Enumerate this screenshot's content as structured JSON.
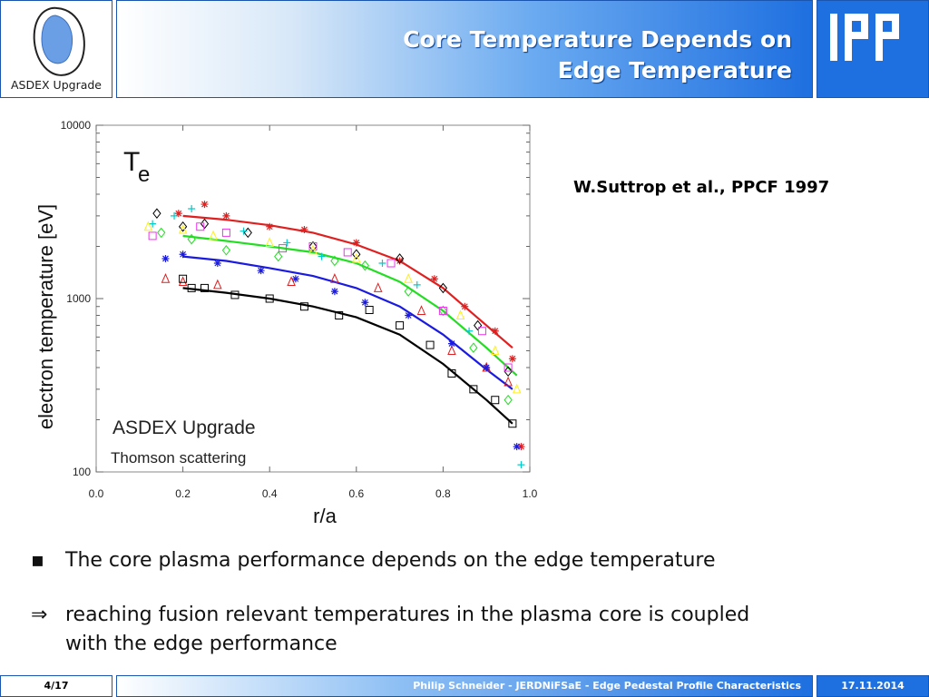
{
  "header": {
    "logo_caption": "ASDEX Upgrade",
    "title_line1": "Core Temperature Depends on",
    "title_line2": "Edge Temperature",
    "ipp_logo_text": "IPP",
    "accent_color": "#1e6fe0"
  },
  "citation": "W.Suttrop et al., PPCF 1997",
  "chart_data": {
    "type": "scatter",
    "title": "T",
    "title_subscript": "e",
    "xlabel": "r/a",
    "ylabel": "electron temperature  [eV]",
    "xscale": "linear",
    "yscale": "log",
    "xlim": [
      0.0,
      1.0
    ],
    "ylim": [
      100,
      10000
    ],
    "xticks": [
      "0.0",
      "0.2",
      "0.4",
      "0.6",
      "0.8",
      "1.0"
    ],
    "yticks": [
      "100",
      "1000",
      "10000"
    ],
    "annotation_1": "ASDEX Upgrade",
    "annotation_2": "Thomson scattering",
    "grid": false,
    "fit_lines": [
      {
        "color": "#e02020",
        "x": [
          0.2,
          0.3,
          0.4,
          0.5,
          0.6,
          0.7,
          0.8,
          0.9,
          0.96
        ],
        "y": [
          3000,
          2850,
          2650,
          2400,
          2050,
          1650,
          1150,
          700,
          520
        ]
      },
      {
        "color": "#22dd22",
        "x": [
          0.2,
          0.3,
          0.4,
          0.5,
          0.6,
          0.7,
          0.8,
          0.9,
          0.97
        ],
        "y": [
          2300,
          2150,
          2000,
          1850,
          1600,
          1250,
          850,
          520,
          360
        ]
      },
      {
        "color": "#1a1ae0",
        "x": [
          0.2,
          0.3,
          0.4,
          0.5,
          0.6,
          0.7,
          0.8,
          0.9,
          0.96
        ],
        "y": [
          1750,
          1650,
          1500,
          1350,
          1150,
          900,
          620,
          390,
          300
        ]
      },
      {
        "color": "#000000",
        "x": [
          0.2,
          0.3,
          0.4,
          0.5,
          0.6,
          0.7,
          0.8,
          0.9,
          0.96
        ],
        "y": [
          1150,
          1080,
          1000,
          900,
          780,
          620,
          420,
          260,
          190
        ]
      }
    ],
    "series": [
      {
        "color": "#e02020",
        "marker": "asterisk",
        "x": [
          0.19,
          0.25,
          0.3,
          0.4,
          0.48,
          0.6,
          0.7,
          0.78,
          0.85,
          0.92,
          0.96,
          0.98
        ],
        "y": [
          3100,
          3500,
          3000,
          2600,
          2500,
          2100,
          1650,
          1300,
          900,
          650,
          450,
          140
        ]
      },
      {
        "color": "#e02020",
        "marker": "triangle",
        "x": [
          0.16,
          0.2,
          0.28,
          0.45,
          0.55,
          0.65,
          0.75,
          0.82,
          0.9,
          0.95
        ],
        "y": [
          1300,
          1250,
          1200,
          1250,
          1300,
          1150,
          850,
          500,
          400,
          330
        ]
      },
      {
        "color": "#22dd22",
        "marker": "diamond",
        "x": [
          0.15,
          0.22,
          0.3,
          0.42,
          0.55,
          0.62,
          0.72,
          0.8,
          0.87,
          0.95
        ],
        "y": [
          2400,
          2200,
          1900,
          1750,
          1650,
          1550,
          1100,
          850,
          520,
          260
        ]
      },
      {
        "color": "#1a1ae0",
        "marker": "asterisk",
        "x": [
          0.16,
          0.2,
          0.28,
          0.38,
          0.46,
          0.55,
          0.62,
          0.72,
          0.82,
          0.9,
          0.97
        ],
        "y": [
          1700,
          1800,
          1600,
          1450,
          1300,
          1100,
          950,
          800,
          550,
          400,
          140
        ]
      },
      {
        "color": "#000000",
        "marker": "square",
        "x": [
          0.2,
          0.22,
          0.25,
          0.32,
          0.4,
          0.48,
          0.56,
          0.63,
          0.7,
          0.77,
          0.82,
          0.87,
          0.92,
          0.96
        ],
        "y": [
          1300,
          1150,
          1150,
          1050,
          1000,
          900,
          800,
          860,
          700,
          540,
          370,
          300,
          260,
          190
        ]
      },
      {
        "color": "#000000",
        "marker": "diamond",
        "x": [
          0.14,
          0.2,
          0.25,
          0.35,
          0.5,
          0.6,
          0.7,
          0.8,
          0.88,
          0.95
        ],
        "y": [
          3100,
          2600,
          2700,
          2400,
          2000,
          1800,
          1700,
          1150,
          700,
          380
        ]
      },
      {
        "color": "#00cccc",
        "marker": "plus",
        "x": [
          0.13,
          0.18,
          0.22,
          0.34,
          0.44,
          0.52,
          0.66,
          0.74,
          0.86,
          0.98
        ],
        "y": [
          2700,
          3000,
          3300,
          2450,
          2100,
          1750,
          1600,
          1200,
          650,
          110
        ]
      },
      {
        "color": "#ee33ee",
        "marker": "square",
        "x": [
          0.13,
          0.24,
          0.3,
          0.43,
          0.5,
          0.58,
          0.68,
          0.8,
          0.89,
          0.95
        ],
        "y": [
          2300,
          2600,
          2400,
          1950,
          2000,
          1850,
          1600,
          850,
          650,
          400
        ]
      },
      {
        "color": "#ffee22",
        "marker": "triangle",
        "x": [
          0.12,
          0.2,
          0.27,
          0.4,
          0.5,
          0.6,
          0.72,
          0.84,
          0.92,
          0.97
        ],
        "y": [
          2600,
          2500,
          2300,
          2100,
          1900,
          1700,
          1300,
          800,
          500,
          300
        ]
      }
    ]
  },
  "bullets": [
    {
      "marker": "▪",
      "text": "The core plasma performance depends on the edge temperature"
    },
    {
      "marker": "⇒",
      "text": "reaching fusion relevant temperatures in the plasma core is coupled",
      "text2": "with the edge performance"
    }
  ],
  "footer": {
    "page": "4/17",
    "center": "Philip Schneider - JERDNiFSaE - Edge Pedestal Profile Characteristics",
    "date": "17.11.2014"
  }
}
